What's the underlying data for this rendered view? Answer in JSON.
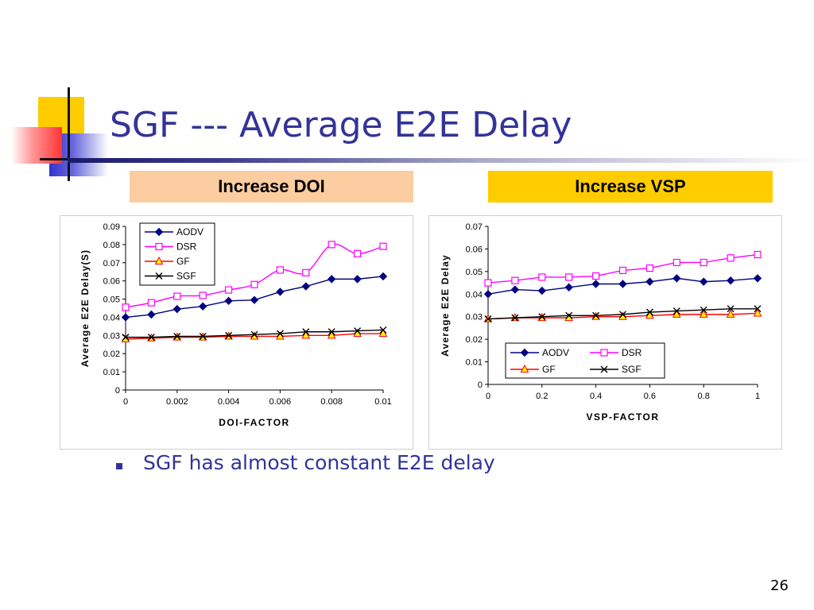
{
  "slide": {
    "title": "SGF --- Average E2E Delay",
    "bullet": "SGF has almost constant E2E delay",
    "page_number": "26",
    "colors": {
      "title": "#333399",
      "doi_header_bg": "#fccda0",
      "vsp_header_bg": "#ffcc00"
    }
  },
  "headers": {
    "doi": "Increase DOI",
    "vsp": "Increase VSP"
  },
  "chart_data": [
    {
      "type": "line",
      "xlabel": "DOI-FACTOR",
      "ylabel": "Average E2E Delay(S)",
      "x": [
        0,
        0.001,
        0.002,
        0.003,
        0.004,
        0.005,
        0.006,
        0.007,
        0.008,
        0.009,
        0.01
      ],
      "xticks": [
        "0",
        "0.002",
        "0.004",
        "0.006",
        "0.008",
        "0.01"
      ],
      "xtick_values": [
        0,
        0.002,
        0.004,
        0.006,
        0.008,
        0.01
      ],
      "yticks": [
        "0",
        "0.01",
        "0.02",
        "0.03",
        "0.04",
        "0.05",
        "0.06",
        "0.07",
        "0.08",
        "0.09"
      ],
      "xlim": [
        0,
        0.01
      ],
      "ylim": [
        0,
        0.09
      ],
      "grid": false,
      "legend_placement": "top-left",
      "series": [
        {
          "name": "AODV",
          "color": "#000080",
          "marker": "diamond",
          "values": [
            0.04,
            0.0415,
            0.0445,
            0.046,
            0.049,
            0.0495,
            0.054,
            0.057,
            0.061,
            0.061,
            0.0625
          ]
        },
        {
          "name": "DSR",
          "color": "#ff00ff",
          "marker": "square",
          "smooth": true,
          "values": [
            0.0455,
            0.048,
            0.0515,
            0.052,
            0.055,
            0.058,
            0.066,
            0.0645,
            0.08,
            0.075,
            0.079
          ]
        },
        {
          "name": "GF",
          "color": "#ff0000",
          "marker": "triangle",
          "values": [
            0.028,
            0.0285,
            0.029,
            0.029,
            0.0295,
            0.0295,
            0.0295,
            0.03,
            0.03,
            0.031,
            0.031
          ]
        },
        {
          "name": "SGF",
          "color": "#000000",
          "marker": "x",
          "values": [
            0.029,
            0.029,
            0.0295,
            0.0295,
            0.03,
            0.0305,
            0.031,
            0.032,
            0.032,
            0.0325,
            0.033
          ]
        }
      ]
    },
    {
      "type": "line",
      "xlabel": "VSP-FACTOR",
      "ylabel": "Average E2E Delay",
      "x": [
        0,
        0.1,
        0.2,
        0.3,
        0.4,
        0.5,
        0.6,
        0.7,
        0.8,
        0.9,
        1
      ],
      "xticks": [
        "0",
        "0.2",
        "0.4",
        "0.6",
        "0.8",
        "1"
      ],
      "xtick_values": [
        0,
        0.2,
        0.4,
        0.6,
        0.8,
        1
      ],
      "yticks": [
        "0",
        "0.01",
        "0.02",
        "0.03",
        "0.04",
        "0.05",
        "0.06",
        "0.07"
      ],
      "xlim": [
        0,
        1
      ],
      "ylim": [
        0,
        0.07
      ],
      "grid": false,
      "legend_placement": "bottom",
      "series": [
        {
          "name": "AODV",
          "color": "#000080",
          "marker": "diamond",
          "values": [
            0.04,
            0.042,
            0.0415,
            0.043,
            0.0445,
            0.0445,
            0.0455,
            0.047,
            0.0455,
            0.046,
            0.047
          ]
        },
        {
          "name": "DSR",
          "color": "#ff00ff",
          "marker": "square",
          "values": [
            0.045,
            0.046,
            0.0475,
            0.0475,
            0.048,
            0.0505,
            0.0515,
            0.054,
            0.054,
            0.056,
            0.0575
          ]
        },
        {
          "name": "GF",
          "color": "#ff0000",
          "marker": "triangle",
          "values": [
            0.029,
            0.0295,
            0.0295,
            0.0295,
            0.03,
            0.03,
            0.0305,
            0.031,
            0.031,
            0.031,
            0.0315
          ]
        },
        {
          "name": "SGF",
          "color": "#000000",
          "marker": "x",
          "values": [
            0.029,
            0.0295,
            0.03,
            0.0305,
            0.0305,
            0.031,
            0.032,
            0.0325,
            0.033,
            0.0335,
            0.0335
          ]
        }
      ]
    }
  ]
}
